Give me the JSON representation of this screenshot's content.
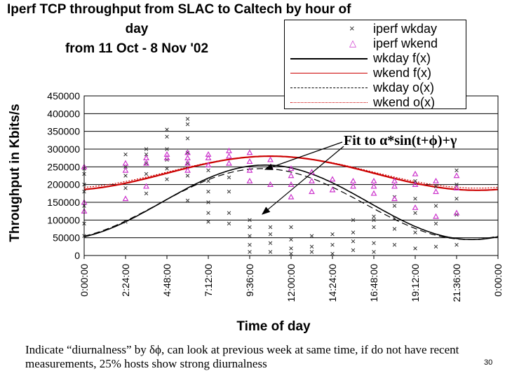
{
  "title_lines": [
    "Iperf TCP throughput from SLAC to Caltech by hour of",
    "day",
    "from 11 Oct - 8 Nov '02"
  ],
  "legend": [
    {
      "label": "iperf wkday",
      "marker": "x",
      "color": "#333333"
    },
    {
      "label": "iperf wkend",
      "marker": "triangle",
      "color": "#cc33cc"
    },
    {
      "label": "wkday f(x)",
      "style": "solid",
      "color": "#000000"
    },
    {
      "label": "wkend f(x)",
      "style": "solid",
      "color": "#cc0000"
    },
    {
      "label": "wkday o(x)",
      "style": "longdash",
      "color": "#000000"
    },
    {
      "label": "wkend o(x)",
      "style": "dotted",
      "color": "#cc0000"
    }
  ],
  "fit_label": "Fit to α*sin(t+ϕ)+γ",
  "footnote": "Indicate “diurnalness” by δϕ, can look at previous week at same time, if do not have recent measurements, 25% hosts show strong diurnalness",
  "page_number": "30",
  "colors": {
    "wkday": "#333333",
    "wkday_bar": "#1a1a99",
    "wkend": "#cc33cc",
    "wkend_fit": "#cc0000",
    "wkday_fit": "#000000"
  },
  "chart_data": {
    "type": "scatter",
    "title": "Iperf TCP throughput from SLAC to Caltech by hour of day from 11 Oct - 8 Nov '02",
    "xlabel": "Time of day",
    "ylabel": "Throughput in Kbits/s",
    "ylim": [
      0,
      450000
    ],
    "xlim_hours": [
      0,
      24
    ],
    "y_ticks": [
      "0",
      "50000",
      "100000",
      "150000",
      "200000",
      "250000",
      "300000",
      "350000",
      "400000",
      "450000"
    ],
    "x_ticks": [
      "0:00:00",
      "2:24:00",
      "4:48:00",
      "7:12:00",
      "9:36:00",
      "12:00:00",
      "14:24:00",
      "16:48:00",
      "19:12:00",
      "21:36:00",
      "0:00:00"
    ],
    "grid": "horizontal",
    "legend_position": "top-right",
    "series": [
      {
        "name": "iperf wkday",
        "marker": "x",
        "points": [
          [
            0.0,
            55000
          ],
          [
            0.0,
            90000
          ],
          [
            0.0,
            140000
          ],
          [
            0.0,
            180000
          ],
          [
            0.0,
            200000
          ],
          [
            0.0,
            230000
          ],
          [
            0.0,
            245000
          ],
          [
            2.4,
            95000
          ],
          [
            2.4,
            190000
          ],
          [
            2.4,
            225000
          ],
          [
            2.4,
            250000
          ],
          [
            2.4,
            285000
          ],
          [
            3.6,
            175000
          ],
          [
            3.6,
            230000
          ],
          [
            3.6,
            260000
          ],
          [
            3.6,
            285000
          ],
          [
            3.6,
            300000
          ],
          [
            4.8,
            215000
          ],
          [
            4.8,
            245000
          ],
          [
            4.8,
            270000
          ],
          [
            4.8,
            300000
          ],
          [
            4.8,
            335000
          ],
          [
            4.8,
            355000
          ],
          [
            6.0,
            155000
          ],
          [
            6.0,
            225000
          ],
          [
            6.0,
            260000
          ],
          [
            6.0,
            290000
          ],
          [
            6.0,
            330000
          ],
          [
            6.0,
            370000
          ],
          [
            6.0,
            385000
          ],
          [
            7.2,
            95000
          ],
          [
            7.2,
            120000
          ],
          [
            7.2,
            150000
          ],
          [
            7.2,
            180000
          ],
          [
            7.2,
            210000
          ],
          [
            7.2,
            240000
          ],
          [
            8.4,
            90000
          ],
          [
            8.4,
            120000
          ],
          [
            8.4,
            180000
          ],
          [
            8.4,
            220000
          ],
          [
            9.6,
            10000
          ],
          [
            9.6,
            30000
          ],
          [
            9.6,
            55000
          ],
          [
            9.6,
            80000
          ],
          [
            9.6,
            100000
          ],
          [
            10.8,
            10000
          ],
          [
            10.8,
            35000
          ],
          [
            10.8,
            60000
          ],
          [
            10.8,
            80000
          ],
          [
            12.0,
            5000
          ],
          [
            12.0,
            20000
          ],
          [
            12.0,
            45000
          ],
          [
            12.0,
            80000
          ],
          [
            13.2,
            10000
          ],
          [
            13.2,
            25000
          ],
          [
            13.2,
            55000
          ],
          [
            14.4,
            5000
          ],
          [
            14.4,
            30000
          ],
          [
            14.4,
            60000
          ],
          [
            15.6,
            15000
          ],
          [
            15.6,
            40000
          ],
          [
            15.6,
            65000
          ],
          [
            15.6,
            100000
          ],
          [
            16.8,
            10000
          ],
          [
            16.8,
            35000
          ],
          [
            16.8,
            80000
          ],
          [
            16.8,
            100000
          ],
          [
            16.8,
            110000
          ],
          [
            18.0,
            30000
          ],
          [
            18.0,
            75000
          ],
          [
            18.0,
            105000
          ],
          [
            18.0,
            140000
          ],
          [
            18.0,
            165000
          ],
          [
            19.2,
            20000
          ],
          [
            19.2,
            65000
          ],
          [
            19.2,
            120000
          ],
          [
            19.2,
            160000
          ],
          [
            19.2,
            210000
          ],
          [
            20.4,
            25000
          ],
          [
            20.4,
            90000
          ],
          [
            20.4,
            140000
          ],
          [
            20.4,
            195000
          ],
          [
            21.6,
            30000
          ],
          [
            21.6,
            115000
          ],
          [
            21.6,
            160000
          ],
          [
            21.6,
            200000
          ],
          [
            21.6,
            240000
          ]
        ]
      },
      {
        "name": "iperf wkend",
        "marker": "triangle",
        "points": [
          [
            0.0,
            125000
          ],
          [
            0.0,
            150000
          ],
          [
            0.0,
            250000
          ],
          [
            2.4,
            160000
          ],
          [
            2.4,
            240000
          ],
          [
            2.4,
            260000
          ],
          [
            3.6,
            195000
          ],
          [
            3.6,
            260000
          ],
          [
            3.6,
            275000
          ],
          [
            4.8,
            275000
          ],
          [
            4.8,
            285000
          ],
          [
            6.0,
            240000
          ],
          [
            6.0,
            260000
          ],
          [
            6.0,
            275000
          ],
          [
            6.0,
            290000
          ],
          [
            7.2,
            255000
          ],
          [
            7.2,
            275000
          ],
          [
            7.2,
            285000
          ],
          [
            8.4,
            260000
          ],
          [
            8.4,
            280000
          ],
          [
            8.4,
            295000
          ],
          [
            9.6,
            210000
          ],
          [
            9.6,
            240000
          ],
          [
            9.6,
            265000
          ],
          [
            9.6,
            290000
          ],
          [
            10.8,
            200000
          ],
          [
            10.8,
            250000
          ],
          [
            10.8,
            270000
          ],
          [
            12.0,
            165000
          ],
          [
            12.0,
            200000
          ],
          [
            12.0,
            225000
          ],
          [
            12.0,
            245000
          ],
          [
            13.2,
            180000
          ],
          [
            13.2,
            210000
          ],
          [
            13.2,
            235000
          ],
          [
            14.4,
            185000
          ],
          [
            14.4,
            215000
          ],
          [
            15.6,
            195000
          ],
          [
            15.6,
            210000
          ],
          [
            16.8,
            175000
          ],
          [
            16.8,
            195000
          ],
          [
            16.8,
            210000
          ],
          [
            18.0,
            160000
          ],
          [
            18.0,
            195000
          ],
          [
            18.0,
            210000
          ],
          [
            19.2,
            135000
          ],
          [
            19.2,
            200000
          ],
          [
            19.2,
            230000
          ],
          [
            20.4,
            110000
          ],
          [
            20.4,
            180000
          ],
          [
            20.4,
            210000
          ],
          [
            21.6,
            120000
          ],
          [
            21.6,
            190000
          ],
          [
            21.6,
            225000
          ]
        ]
      },
      {
        "name": "wkday f(x)",
        "type": "sine",
        "alpha": 105000,
        "gamma": 150000,
        "phase_hours": 4.5,
        "color": "#000000"
      },
      {
        "name": "wkend f(x)",
        "type": "sine",
        "alpha": 48000,
        "gamma": 232000,
        "phase_hours": 4.8,
        "color": "#cc0000"
      },
      {
        "name": "wkday o(x)",
        "type": "sine",
        "alpha": 100000,
        "gamma": 145000,
        "phase_hours": 4.3,
        "color": "#000000"
      },
      {
        "name": "wkend o(x)",
        "type": "sine",
        "alpha": 45000,
        "gamma": 235000,
        "phase_hours": 4.8,
        "color": "#cc0000"
      }
    ]
  }
}
